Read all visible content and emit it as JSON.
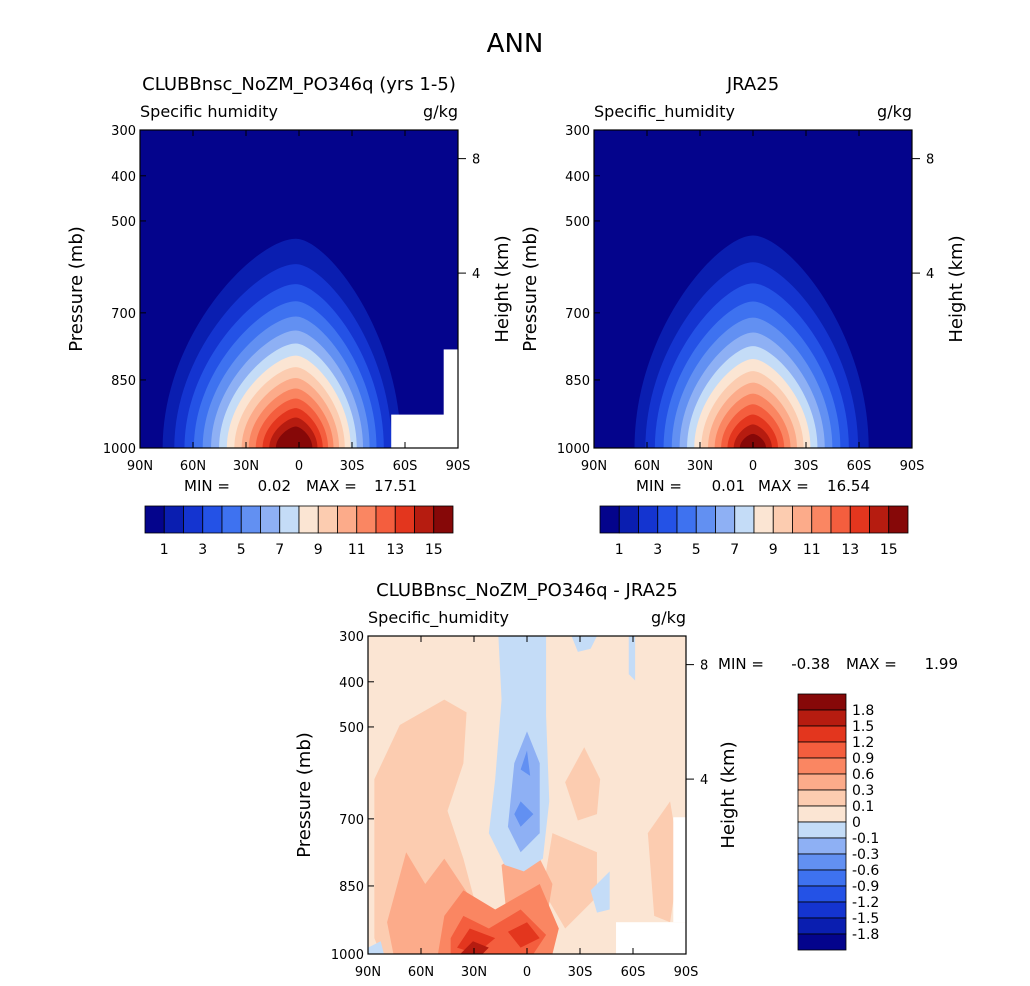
{
  "figure_title": "ANN",
  "colors": {
    "abs_scale": [
      "#04048c",
      "#0a1eb0",
      "#1434d0",
      "#2452e6",
      "#3e72f0",
      "#6290f2",
      "#8eb0f4",
      "#c4dcf7",
      "#fbe5d3",
      "#fcccb0",
      "#fcab8a",
      "#fa8662",
      "#f45e3e",
      "#e3361e",
      "#b61c10",
      "#860808"
    ],
    "diff_scale": [
      "#04048c",
      "#0a1eb0",
      "#1434d0",
      "#2452e6",
      "#3e72f0",
      "#6290f2",
      "#8eb0f4",
      "#c4dcf7",
      "#fbe5d3",
      "#fcccb0",
      "#fcab8a",
      "#fa8662",
      "#f45e3e",
      "#e3361e",
      "#b61c10",
      "#860808"
    ]
  },
  "chart_data": [
    {
      "type": "heatmap",
      "title": "CLUBBnsc_NoZM_PO346q (yrs 1-5)",
      "variable": "Specific humidity",
      "units": "g/kg",
      "ylabel": "Pressure (mb)",
      "y2label": "Height (km)",
      "xticks": [
        "90N",
        "60N",
        "30N",
        "0",
        "30S",
        "60S",
        "90S"
      ],
      "yticks": [
        "300",
        "400",
        "500",
        "700",
        "850",
        "1000"
      ],
      "y2ticks": [
        "8",
        "4"
      ],
      "min_label": "MIN =",
      "min_value": "0.02",
      "max_label": "MAX =",
      "max_value": "17.51",
      "colorbar_labels": [
        "1",
        "3",
        "5",
        "7",
        "9",
        "11",
        "13",
        "15"
      ],
      "contour_levels": [
        1,
        2,
        3,
        4,
        5,
        6,
        7,
        8,
        9,
        10,
        11,
        12,
        13,
        14,
        15
      ],
      "peak_value": 17.51
    },
    {
      "type": "heatmap",
      "title": "JRA25",
      "variable": "Specific_humidity",
      "units": "g/kg",
      "ylabel": "Pressure (mb)",
      "y2label": "Height (km)",
      "xticks": [
        "90N",
        "60N",
        "30N",
        "0",
        "30S",
        "60S",
        "90S"
      ],
      "yticks": [
        "300",
        "400",
        "500",
        "700",
        "850",
        "1000"
      ],
      "y2ticks": [
        "8",
        "4"
      ],
      "min_label": "MIN =",
      "min_value": "0.01",
      "max_label": "MAX =",
      "max_value": "16.54",
      "colorbar_labels": [
        "1",
        "3",
        "5",
        "7",
        "9",
        "11",
        "13",
        "15"
      ],
      "contour_levels": [
        1,
        2,
        3,
        4,
        5,
        6,
        7,
        8,
        9,
        10,
        11,
        12,
        13,
        14,
        15
      ],
      "peak_value": 16.54
    },
    {
      "type": "heatmap",
      "title": "CLUBBnsc_NoZM_PO346q - JRA25",
      "variable": "Specific_humidity",
      "units": "g/kg",
      "ylabel": "Pressure (mb)",
      "y2label": "Height (km)",
      "xticks": [
        "90N",
        "60N",
        "30N",
        "0",
        "30S",
        "60S",
        "90S"
      ],
      "yticks": [
        "300",
        "400",
        "500",
        "700",
        "850",
        "1000"
      ],
      "y2ticks": [
        "8",
        "4"
      ],
      "min_label": "MIN =",
      "min_value": "-0.38",
      "max_label": "MAX =",
      "max_value": "1.99",
      "colorbar_labels": [
        "1.8",
        "1.5",
        "1.2",
        "0.9",
        "0.6",
        "0.3",
        "0.1",
        "0",
        "-0.1",
        "-0.3",
        "-0.6",
        "-0.9",
        "-1.2",
        "-1.5",
        "-1.8"
      ],
      "contour_levels": [
        -1.8,
        -1.5,
        -1.2,
        -0.9,
        -0.6,
        -0.3,
        -0.1,
        0,
        0.1,
        0.3,
        0.6,
        0.9,
        1.2,
        1.5,
        1.8
      ]
    }
  ]
}
